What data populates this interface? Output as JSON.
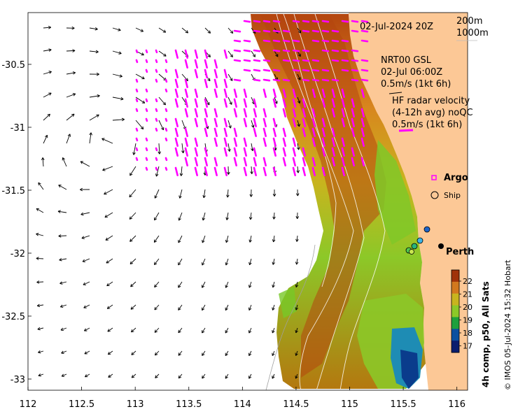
{
  "map": {
    "date_label": "02-Jul-2024 20Z",
    "contour_labels": [
      "200m",
      "1000m"
    ],
    "model_label": [
      "NRT00 GSL",
      "02-Jul 06:00Z",
      "0.5m/s (1kt 6h)"
    ],
    "radar_label": [
      "HF radar velocity",
      "(4-12h avg) noQC",
      "0.5m/s (1kt 6h)"
    ],
    "legend": {
      "argo": "Argo",
      "ship": "Ship"
    },
    "city": "Perth",
    "colorbar": {
      "title": "4h comp, p50, All Sats",
      "ticks": [
        "22",
        "21",
        "20",
        "19",
        "18",
        "17"
      ],
      "colors": [
        "#a0320a",
        "#d2781e",
        "#c8b41e",
        "#8cc828",
        "#1ea03c",
        "#0a50a0",
        "#0a1e6e"
      ]
    },
    "credit": "© IMOS 05-Jul-2024 15:32 Hobart",
    "x_ticks": [
      "112",
      "112.5",
      "113",
      "113.5",
      "114",
      "114.5",
      "115",
      "115.5",
      "116"
    ],
    "y_ticks": [
      "-30.5",
      "-31",
      "-31.5",
      "-32",
      "-32.5",
      "-33"
    ],
    "colors": {
      "land": "#fcc896",
      "radar_arrow": "#ff00ff",
      "model_arrow": "#000000"
    }
  }
}
